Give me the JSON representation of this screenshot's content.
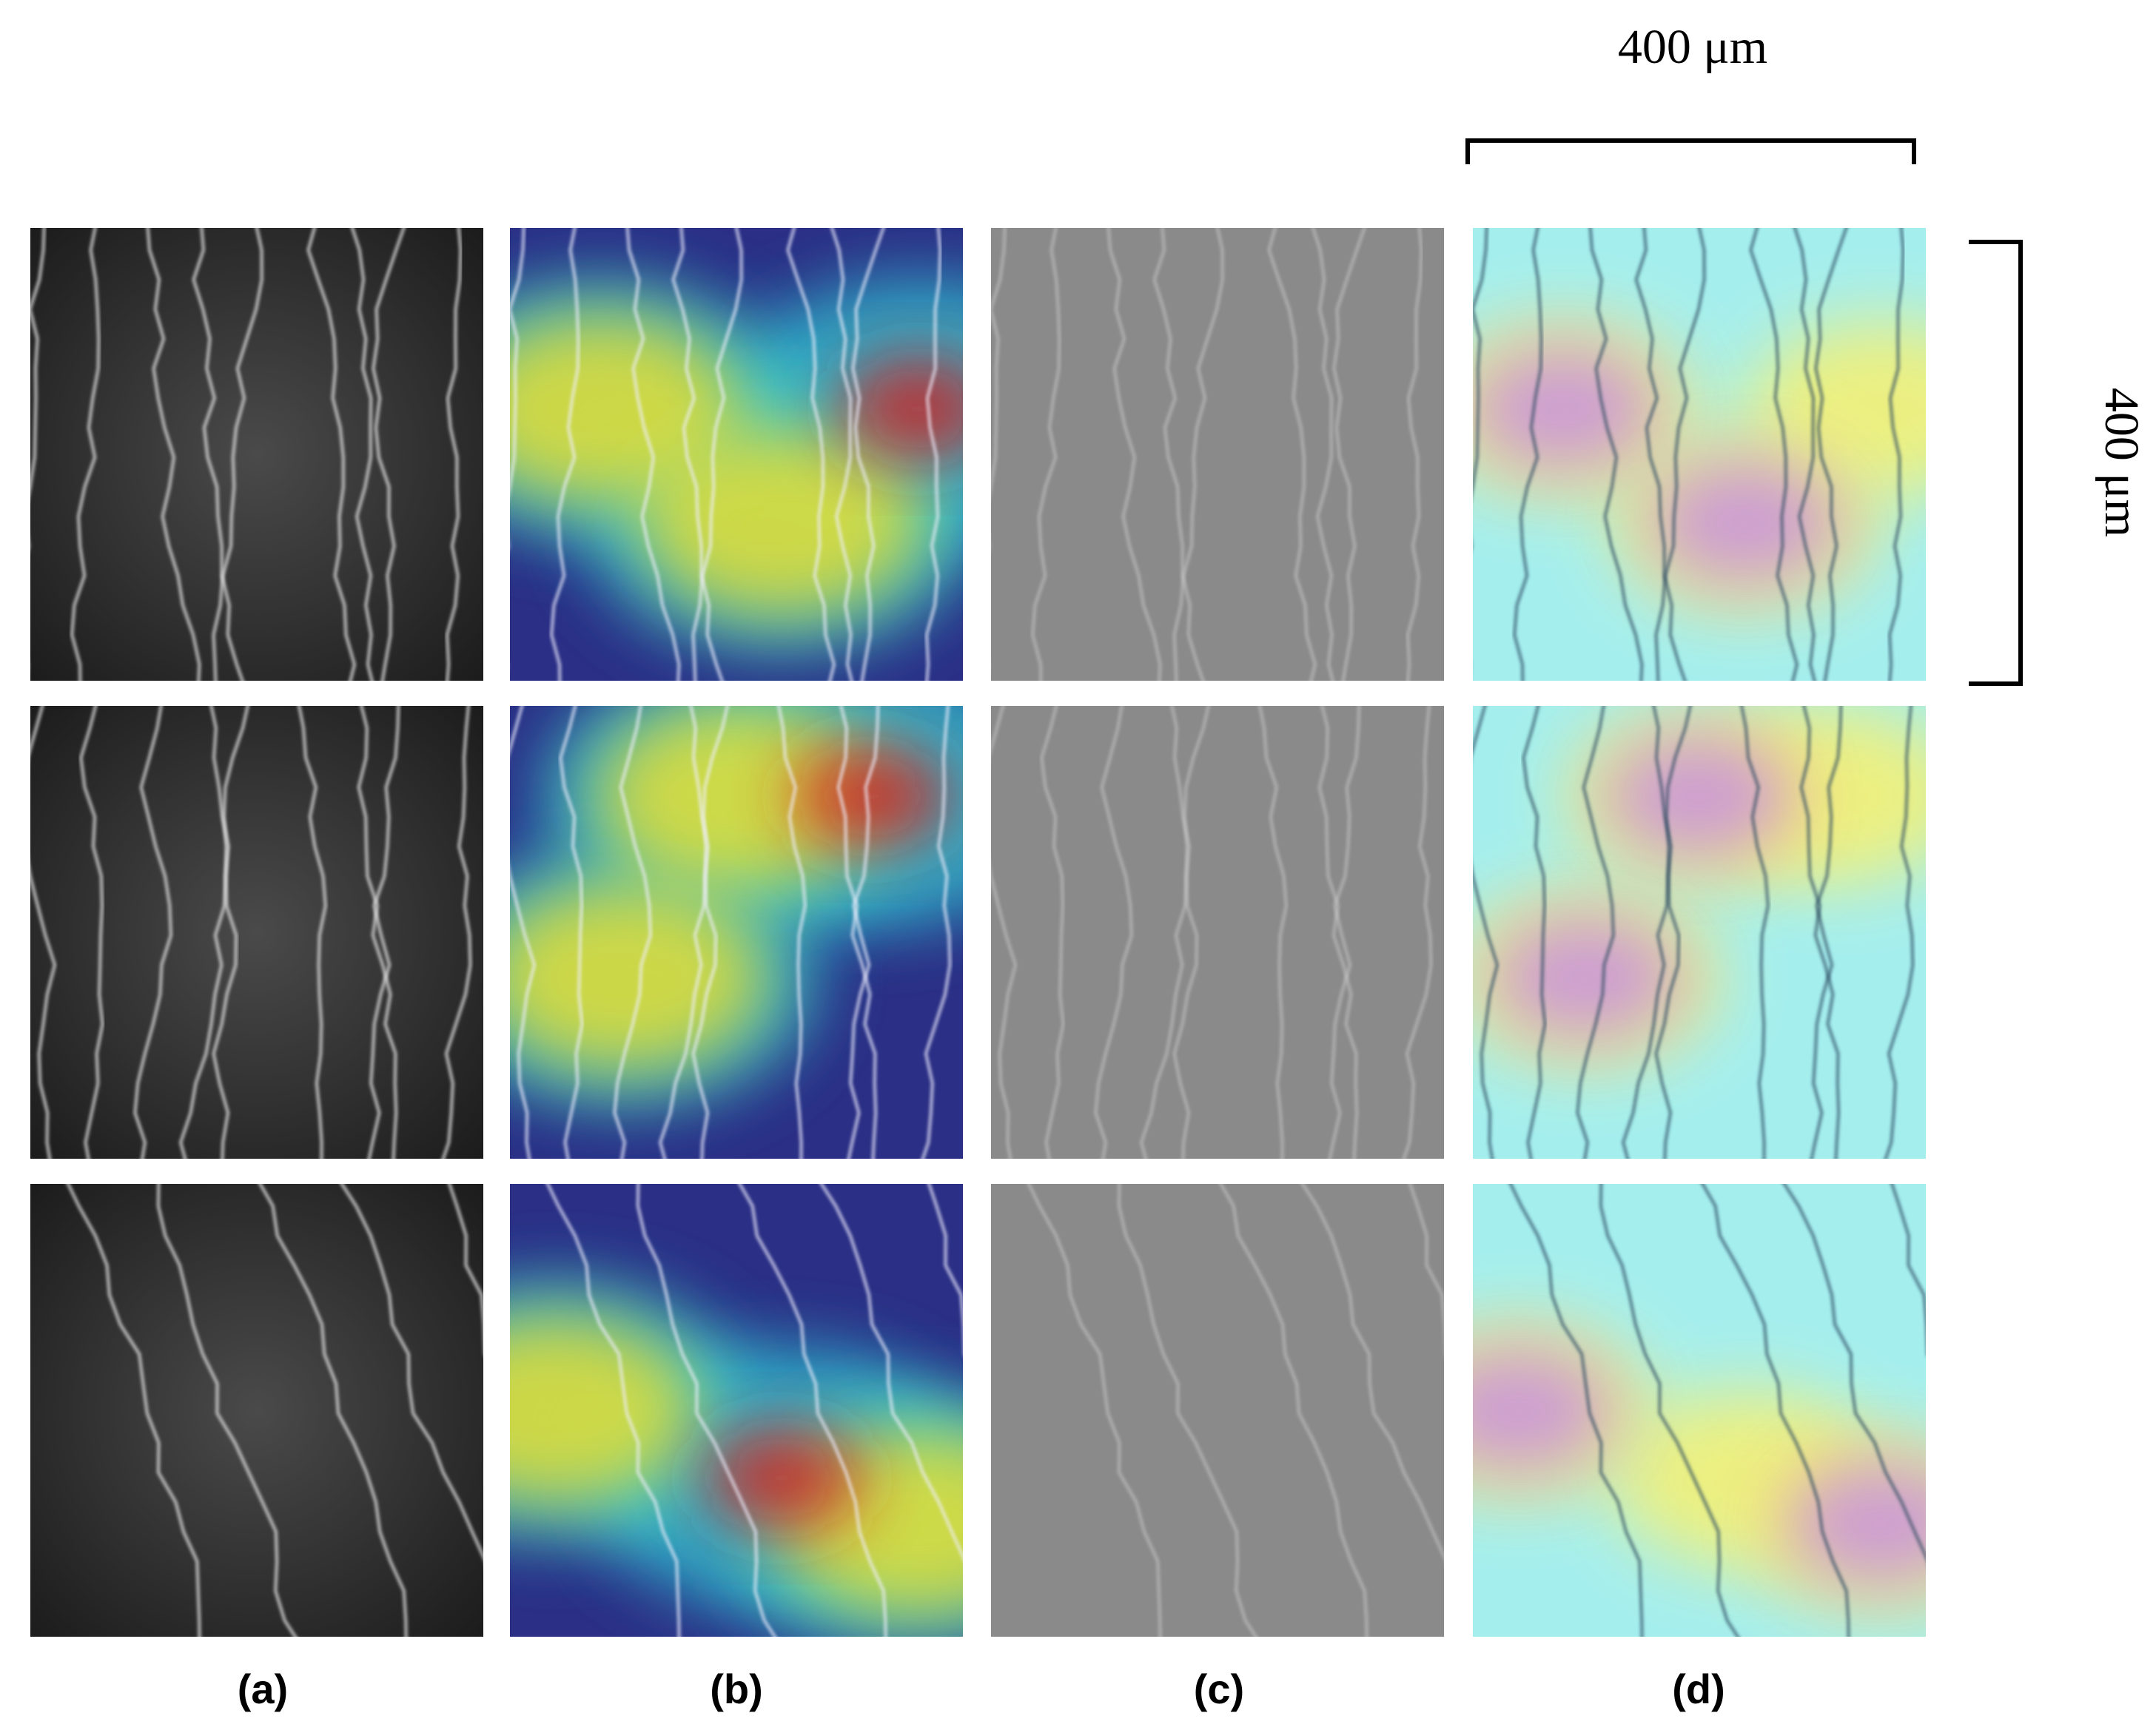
{
  "labels": [
    "(a)",
    "(b)",
    "(c)",
    "(d)"
  ],
  "scale_bars": {
    "horizontal": "400 μm",
    "vertical": "400 μm"
  }
}
